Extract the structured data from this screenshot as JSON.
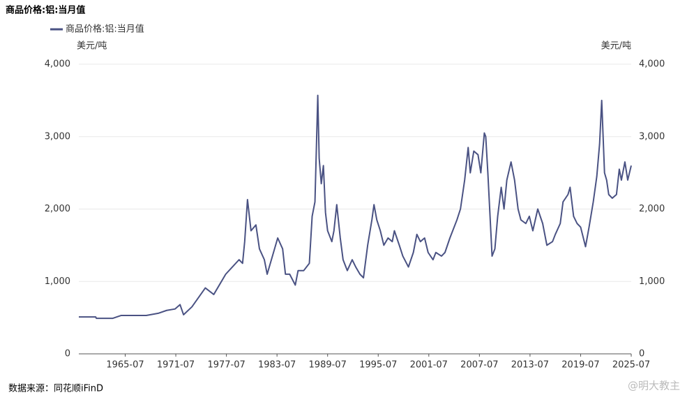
{
  "chart_data": {
    "type": "line",
    "title": "商品价格:铝:当月值",
    "y_label": "美元/吨",
    "source": "数据来源：同花顺iFinD",
    "watermark": "@明大教主",
    "xlim": [
      "1960-01",
      "2025-07"
    ],
    "xticks": [
      "1965-07",
      "1971-07",
      "1977-07",
      "1983-07",
      "1989-07",
      "1995-07",
      "2001-07",
      "2007-07",
      "2013-07",
      "2019-07",
      "2025-07"
    ],
    "ylim": [
      0,
      4000
    ],
    "yticks": [
      0,
      {
        "value": 1000,
        "label": "1,000"
      },
      {
        "value": 2000,
        "label": "2,000"
      },
      {
        "value": 3000,
        "label": "3,000"
      },
      {
        "value": 4000,
        "label": "4,000"
      }
    ],
    "grid": true,
    "x": [
      "1960-01",
      "1962-01",
      "1962-02",
      "1964-01",
      "1965-01",
      "1968-01",
      "1969-06",
      "1970-06",
      "1971-06",
      "1972-01",
      "1972-06",
      "1973-06",
      "1975-01",
      "1976-01",
      "1977-06",
      "1979-01",
      "1979-06",
      "1979-09",
      "1980-01",
      "1980-06",
      "1981-01",
      "1981-06",
      "1982-01",
      "1982-05",
      "1983-05",
      "1983-08",
      "1984-03",
      "1984-07",
      "1985-01",
      "1985-09",
      "1986-01",
      "1986-09",
      "1987-05",
      "1987-09",
      "1988-01",
      "1988-05",
      "1988-07",
      "1988-10",
      "1989-01",
      "1989-04",
      "1989-07",
      "1990-01",
      "1990-04",
      "1990-08",
      "1991-01",
      "1991-05",
      "1991-11",
      "1992-06",
      "1992-11",
      "1993-05",
      "1993-10",
      "1994-04",
      "1994-10",
      "1995-01",
      "1995-05",
      "1995-10",
      "1996-03",
      "1996-09",
      "1997-03",
      "1997-06",
      "1998-01",
      "1998-06",
      "1999-02",
      "1999-09",
      "2000-02",
      "2000-07",
      "2001-01",
      "2001-06",
      "2002-01",
      "2002-05",
      "2003-01",
      "2003-06",
      "2004-01",
      "2004-05",
      "2004-11",
      "2005-04",
      "2005-10",
      "2006-03",
      "2006-06",
      "2006-11",
      "2007-05",
      "2007-09",
      "2008-02",
      "2008-04",
      "2008-07",
      "2009-01",
      "2009-05",
      "2009-09",
      "2010-02",
      "2010-06",
      "2010-10",
      "2011-04",
      "2011-09",
      "2012-02",
      "2012-06",
      "2013-01",
      "2013-06",
      "2013-11",
      "2014-06",
      "2015-01",
      "2015-07",
      "2016-03",
      "2016-07",
      "2017-02",
      "2017-06",
      "2018-01",
      "2018-04",
      "2018-09",
      "2019-02",
      "2019-07",
      "2020-02",
      "2020-07",
      "2021-01",
      "2021-06",
      "2021-10",
      "2022-01",
      "2022-05",
      "2022-08",
      "2022-11",
      "2023-04",
      "2023-10",
      "2024-02",
      "2024-05",
      "2024-10",
      "2025-02",
      "2025-07"
    ],
    "series": [
      {
        "name": "商品价格:铝:当月值",
        "color": "#4a5283",
        "values": [
          510,
          510,
          490,
          490,
          530,
          530,
          560,
          600,
          620,
          680,
          540,
          650,
          910,
          820,
          1100,
          1300,
          1250,
          1550,
          2130,
          1700,
          1780,
          1450,
          1300,
          1100,
          1500,
          1600,
          1450,
          1100,
          1100,
          950,
          1150,
          1150,
          1250,
          1900,
          2100,
          3570,
          2700,
          2350,
          2600,
          1950,
          1700,
          1550,
          1700,
          2060,
          1600,
          1300,
          1150,
          1300,
          1200,
          1100,
          1050,
          1500,
          1850,
          2060,
          1850,
          1700,
          1500,
          1600,
          1550,
          1700,
          1500,
          1350,
          1200,
          1400,
          1650,
          1550,
          1600,
          1400,
          1300,
          1400,
          1350,
          1400,
          1600,
          1700,
          1850,
          2000,
          2400,
          2850,
          2500,
          2800,
          2750,
          2500,
          3050,
          3000,
          2500,
          1350,
          1450,
          1900,
          2300,
          2000,
          2400,
          2650,
          2400,
          2000,
          1850,
          1800,
          1900,
          1700,
          2000,
          1800,
          1500,
          1550,
          1650,
          1800,
          2100,
          2200,
          2300,
          1900,
          1800,
          1750,
          1480,
          1750,
          2100,
          2450,
          2900,
          3500,
          2500,
          2400,
          2200,
          2150,
          2200,
          2550,
          2400,
          2650,
          2400,
          2600
        ]
      }
    ]
  }
}
